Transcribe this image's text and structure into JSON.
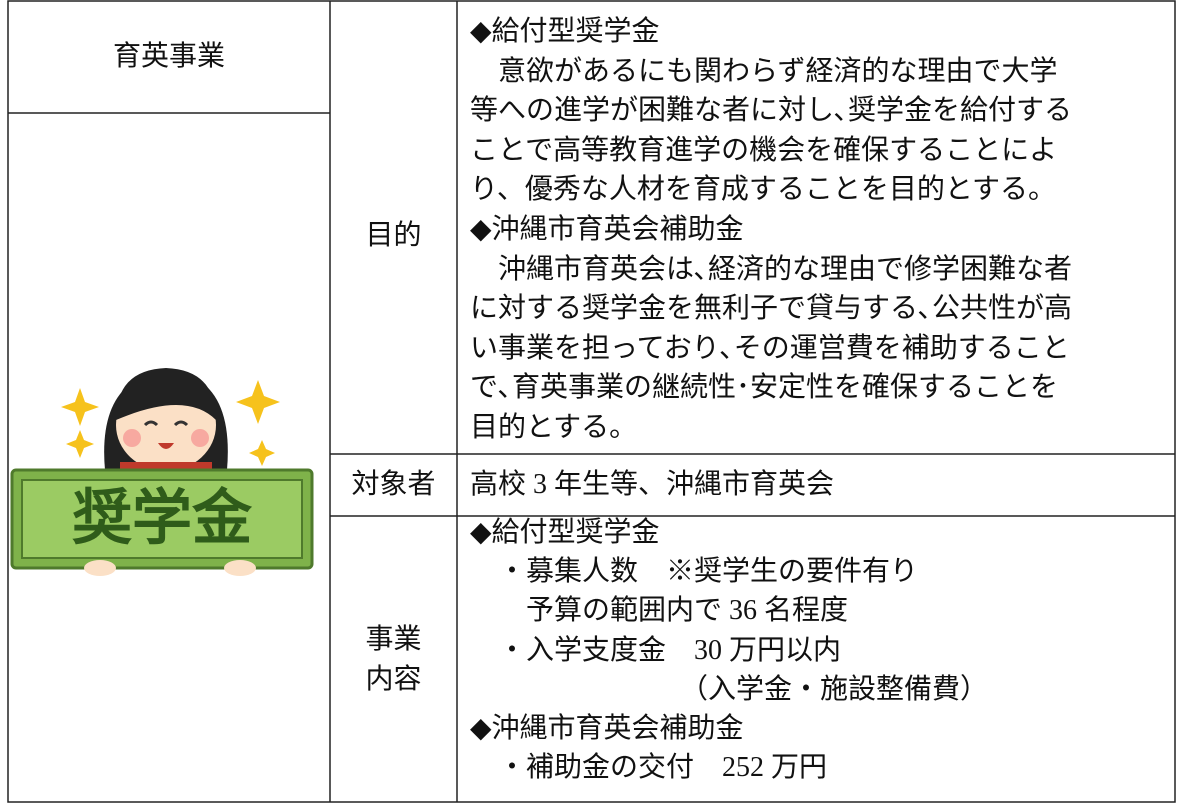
{
  "table": {
    "header": "育英事業",
    "illustration_label": "奨学金",
    "rows": [
      {
        "label": [
          "目的"
        ],
        "lines": [
          "◆給付型奨学金",
          "　意欲があるにも関わらず経済的な理由で大学",
          "等への進学が困難な者に対し､奨学金を給付する",
          "ことで高等教育進学の機会を確保することによ",
          "り、優秀な人材を育成することを目的とする。",
          "◆沖縄市育英会補助金",
          "　沖縄市育英会は､経済的な理由で修学困難な者",
          "に対する奨学金を無利子で貸与する､公共性が高",
          "い事業を担っており､その運営費を補助すること",
          "で､育英事業の継続性･安定性を確保することを",
          "目的とする。"
        ]
      },
      {
        "label": [
          "対象者"
        ],
        "lines": [
          "高校 3 年生等、沖縄市育英会"
        ]
      },
      {
        "label": [
          "事業",
          "内容"
        ],
        "lines": [
          "◆給付型奨学金",
          "　・募集人数　※奨学生の要件有り",
          "　　予算の範囲内で 36 名程度",
          "　・入学支度金　30 万円以内",
          "　　　　　　　　（入学金・施設整備費）",
          "◆沖縄市育英会補助金",
          "　・補助金の交付　252 万円"
        ]
      }
    ]
  }
}
